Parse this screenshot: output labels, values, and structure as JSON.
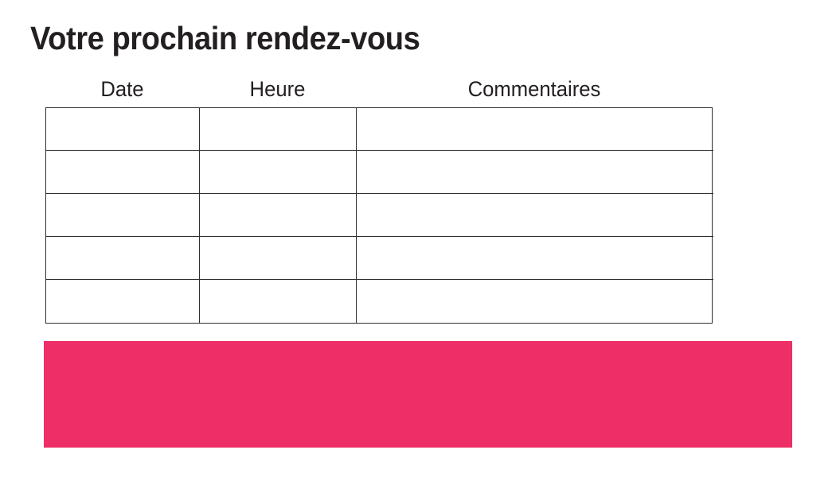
{
  "page": {
    "title": "Votre prochain rendez-vous",
    "background_color": "#ffffff",
    "text_color": "#231f20"
  },
  "table": {
    "headers": [
      "Date",
      "Heure",
      "Commentaires"
    ],
    "row_count": 5,
    "column_count": 3,
    "rows": [
      [
        "",
        "",
        ""
      ],
      [
        "",
        "",
        ""
      ],
      [
        "",
        "",
        ""
      ],
      [
        "",
        "",
        ""
      ],
      [
        "",
        "",
        ""
      ]
    ],
    "border_color": "#2e2e2e"
  },
  "banner": {
    "color": "#ed2e67",
    "text": ""
  }
}
